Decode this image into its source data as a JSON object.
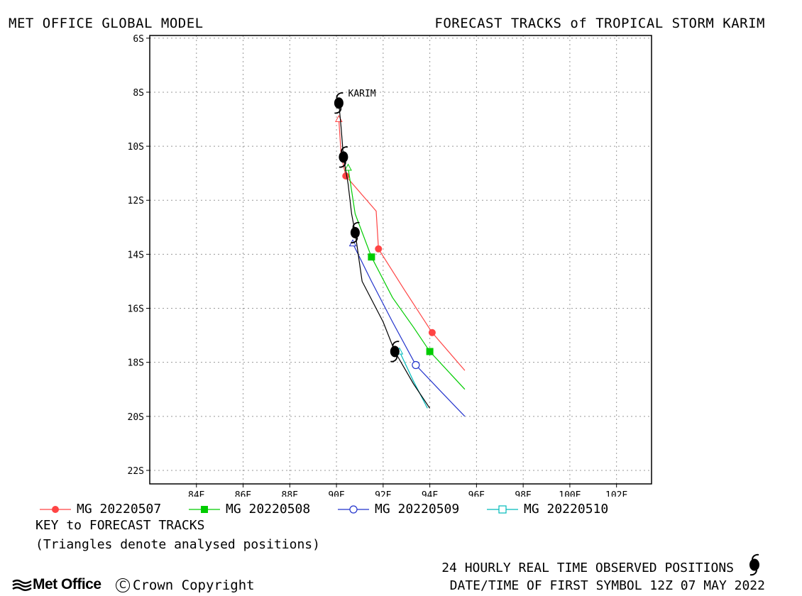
{
  "header": {
    "left": "MET OFFICE GLOBAL MODEL",
    "right": "FORECAST TRACKS of TROPICAL STORM KARIM"
  },
  "chart_data": {
    "type": "line",
    "title": "FORECAST TRACKS of TROPICAL STORM KARIM",
    "xlim": [
      82,
      103.5
    ],
    "ylim": [
      -22.5,
      -5.9
    ],
    "x_ticks": [
      84,
      86,
      88,
      90,
      92,
      94,
      96,
      98,
      100,
      102
    ],
    "x_tick_labels": [
      "84E",
      "86E",
      "88E",
      "90E",
      "92E",
      "94E",
      "96E",
      "98E",
      "100E",
      "102E"
    ],
    "y_ticks": [
      -6,
      -8,
      -10,
      -12,
      -14,
      -16,
      -18,
      -20,
      -22
    ],
    "y_tick_labels": [
      "6S",
      "8S",
      "10S",
      "12S",
      "14S",
      "16S",
      "18S",
      "20S",
      "22S"
    ],
    "grid": true,
    "storm_label": "KARIM",
    "storm_label_at": [
      90.5,
      -8.05
    ],
    "observed_track": {
      "color": "#000000",
      "points": [
        [
          90.1,
          -8.4
        ],
        [
          90.2,
          -9.3
        ],
        [
          90.3,
          -10.4
        ],
        [
          90.5,
          -11.4
        ],
        [
          90.65,
          -12.5
        ],
        [
          90.8,
          -13.2
        ],
        [
          91.1,
          -15.0
        ],
        [
          92.0,
          -16.5
        ],
        [
          92.5,
          -17.6
        ],
        [
          93.3,
          -18.8
        ],
        [
          94.0,
          -19.7
        ]
      ],
      "symbols": [
        [
          90.1,
          -8.4
        ],
        [
          90.3,
          -10.4
        ],
        [
          90.8,
          -13.2
        ],
        [
          92.5,
          -17.6
        ]
      ]
    },
    "series": [
      {
        "name": "MG 20220507",
        "color": "#ff4444",
        "marker": "filled-circle",
        "points": [
          [
            90.1,
            -9.0
          ],
          [
            90.2,
            -10.3
          ],
          [
            90.4,
            -11.1
          ],
          [
            91.1,
            -11.8
          ],
          [
            91.7,
            -12.4
          ],
          [
            91.8,
            -13.8
          ],
          [
            92.9,
            -15.3
          ],
          [
            94.1,
            -16.9
          ],
          [
            95.5,
            -18.3
          ]
        ],
        "markers": [
          [
            90.4,
            -11.1
          ],
          [
            91.8,
            -13.8
          ],
          [
            94.1,
            -16.9
          ]
        ],
        "triangle_at": [
          90.1,
          -9.0
        ]
      },
      {
        "name": "MG 20220508",
        "color": "#00cc00",
        "marker": "filled-square",
        "points": [
          [
            90.5,
            -10.8
          ],
          [
            90.8,
            -12.5
          ],
          [
            91.5,
            -14.1
          ],
          [
            92.4,
            -15.6
          ],
          [
            93.3,
            -16.7
          ],
          [
            94.0,
            -17.6
          ],
          [
            95.5,
            -19.0
          ]
        ],
        "markers": [
          [
            91.5,
            -14.1
          ],
          [
            94.0,
            -17.6
          ]
        ],
        "triangle_at": [
          90.5,
          -10.8
        ]
      },
      {
        "name": "MG 20220509",
        "color": "#2233cc",
        "marker": "open-circle",
        "points": [
          [
            90.7,
            -13.6
          ],
          [
            91.5,
            -15.0
          ],
          [
            92.4,
            -16.5
          ],
          [
            93.4,
            -18.1
          ],
          [
            94.5,
            -19.1
          ],
          [
            95.5,
            -20.0
          ]
        ],
        "markers": [
          [
            93.4,
            -18.1
          ]
        ],
        "triangle_at": [
          90.7,
          -13.6
        ]
      },
      {
        "name": "MG 20220510",
        "color": "#00bbbb",
        "marker": "open-square",
        "points": [
          [
            92.7,
            -17.6
          ],
          [
            93.3,
            -18.7
          ],
          [
            93.9,
            -19.7
          ]
        ],
        "markers": [],
        "triangle_at": [
          92.7,
          -17.6
        ]
      }
    ]
  },
  "legend": {
    "items": [
      {
        "label": "MG 20220507",
        "color": "#ff4444",
        "marker": "filled-circle"
      },
      {
        "label": "MG 20220508",
        "color": "#00cc00",
        "marker": "filled-square"
      },
      {
        "label": "MG 20220509",
        "color": "#2233cc",
        "marker": "open-circle"
      },
      {
        "label": "MG 20220510",
        "color": "#00bbbb",
        "marker": "open-square"
      }
    ]
  },
  "key": {
    "title": "KEY to FORECAST TRACKS",
    "note": "(Triangles denote analysed positions)"
  },
  "footer": {
    "observed": "24 HOURLY REAL TIME OBSERVED POSITIONS",
    "datetime": "DATE/TIME OF FIRST SYMBOL 12Z 07 MAY 2022",
    "logo_text": "Met Office",
    "copyright": "Crown Copyright"
  },
  "icons": {
    "storm": "tropical-storm-icon",
    "logo": "met-office-logo-icon",
    "copyright": "copyright-icon"
  }
}
